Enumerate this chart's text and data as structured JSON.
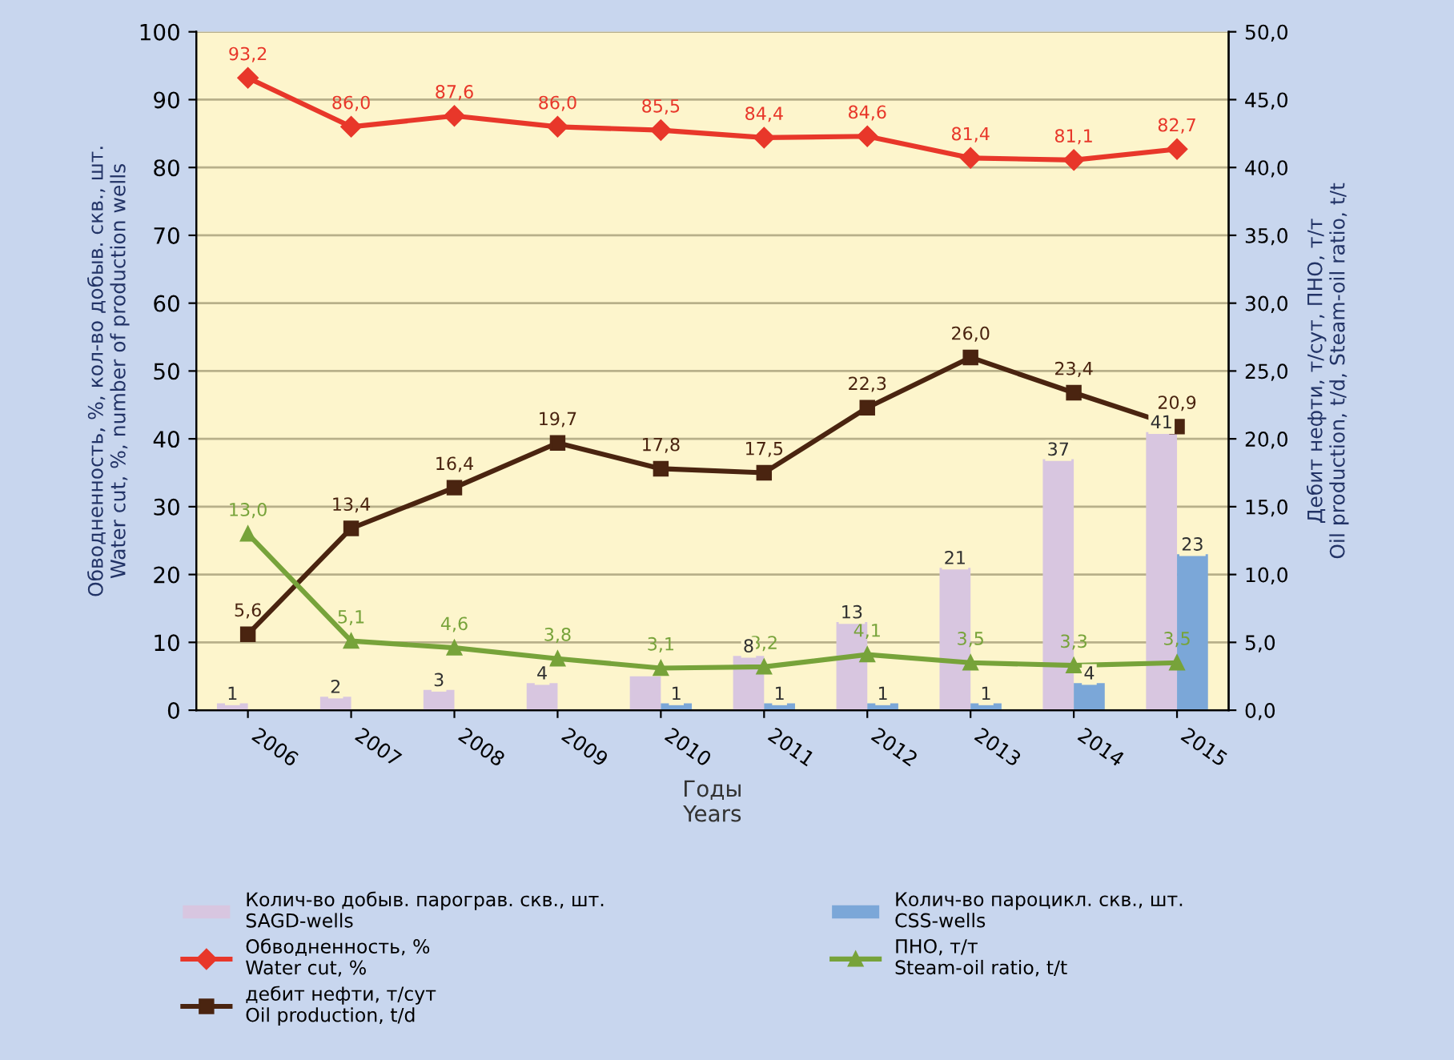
{
  "chart_data": {
    "type": "bar",
    "xlabel": "Годы\nYears",
    "ylabel": "Обводненность, %, кол-во добыв. скв., шт.\nWater cut, %, number of production wells",
    "y2label": "Дебит нефти, т/сут, ПНО, т/т\nOil production, t/d, Steam-oil ratio, t/t",
    "categories": [
      "2006",
      "2007",
      "2008",
      "2009",
      "2010",
      "2011",
      "2012",
      "2013",
      "2014",
      "2015"
    ],
    "series": [
      {
        "name": "Колич-во добыв. парограв. скв., шт.\nSAGD-wells",
        "color": "#d8c6e0",
        "values": [
          1,
          2,
          3,
          4,
          5,
          8,
          13,
          21,
          37,
          41
        ],
        "value_labels": [
          "1",
          "2",
          "3",
          "4",
          null,
          "8",
          "13",
          "21",
          "37",
          "41"
        ]
      },
      {
        "name": "Обводненность, %\nWater cut, %",
        "type": "line",
        "color": "#e8372a",
        "marker": "diamond",
        "values": [
          93.2,
          86.0,
          87.6,
          86.0,
          85.5,
          84.4,
          84.6,
          81.4,
          81.1,
          82.7
        ],
        "value_labels": [
          "93,2",
          "86,0",
          "87,6",
          "86,0",
          "85,5",
          "84,4",
          "84,6",
          "81,4",
          "81,1",
          "82,7"
        ]
      },
      {
        "name": "дебит нефти, т/сут\nOil production, t/d",
        "type": "line",
        "axis": "y2",
        "color": "#4a2410",
        "marker": "square",
        "values": [
          5.6,
          13.4,
          16.4,
          19.7,
          17.8,
          17.5,
          22.3,
          26.0,
          23.4,
          20.9
        ],
        "value_labels": [
          "5,6",
          "13,4",
          "16,4",
          "19,7",
          "17,8",
          "17,5",
          "22,3",
          "26,0",
          "23,4",
          "20,9"
        ]
      },
      {
        "name": "Колич-во пароцикл. скв., шт.\nCSS-wells",
        "color": "#7ba7d8",
        "values": [
          null,
          null,
          null,
          null,
          1,
          1,
          1,
          1,
          4,
          23
        ],
        "value_labels": [
          null,
          null,
          null,
          null,
          "1",
          "1",
          "1",
          "1",
          "4",
          "23"
        ]
      },
      {
        "name": "ПНО, т/т\nSteam-oil ratio, t/t",
        "type": "line",
        "axis": "y2",
        "color": "#77a33a",
        "marker": "triangle",
        "values": [
          13.0,
          5.1,
          4.6,
          3.8,
          3.1,
          3.2,
          4.1,
          3.5,
          3.3,
          3.5
        ],
        "value_labels": [
          "13,0",
          "5,1",
          "4,6",
          "3,8",
          "3,1",
          "3,2",
          "4,1",
          "3,5",
          "3,3",
          "3,5"
        ]
      }
    ],
    "ylim": [
      0,
      100
    ],
    "yticks": [
      0,
      10,
      20,
      30,
      40,
      50,
      60,
      70,
      80,
      90,
      100
    ],
    "y2lim": [
      0,
      50
    ],
    "y2ticks": [
      {
        "value": 0,
        "label": "0,0"
      },
      {
        "value": 5,
        "label": "5,0"
      },
      {
        "value": 10,
        "label": "10,0"
      },
      {
        "value": 15,
        "label": "15,0"
      },
      {
        "value": 20,
        "label": "20,0"
      },
      {
        "value": 25,
        "label": "25,0"
      },
      {
        "value": 30,
        "label": "30,0"
      },
      {
        "value": 35,
        "label": "35,0"
      },
      {
        "value": 40,
        "label": "40,0"
      },
      {
        "value": 45,
        "label": "45,0"
      },
      {
        "value": 50,
        "label": "50,0"
      }
    ],
    "grid": "y",
    "legend": "bottom",
    "line_style": "solid"
  }
}
